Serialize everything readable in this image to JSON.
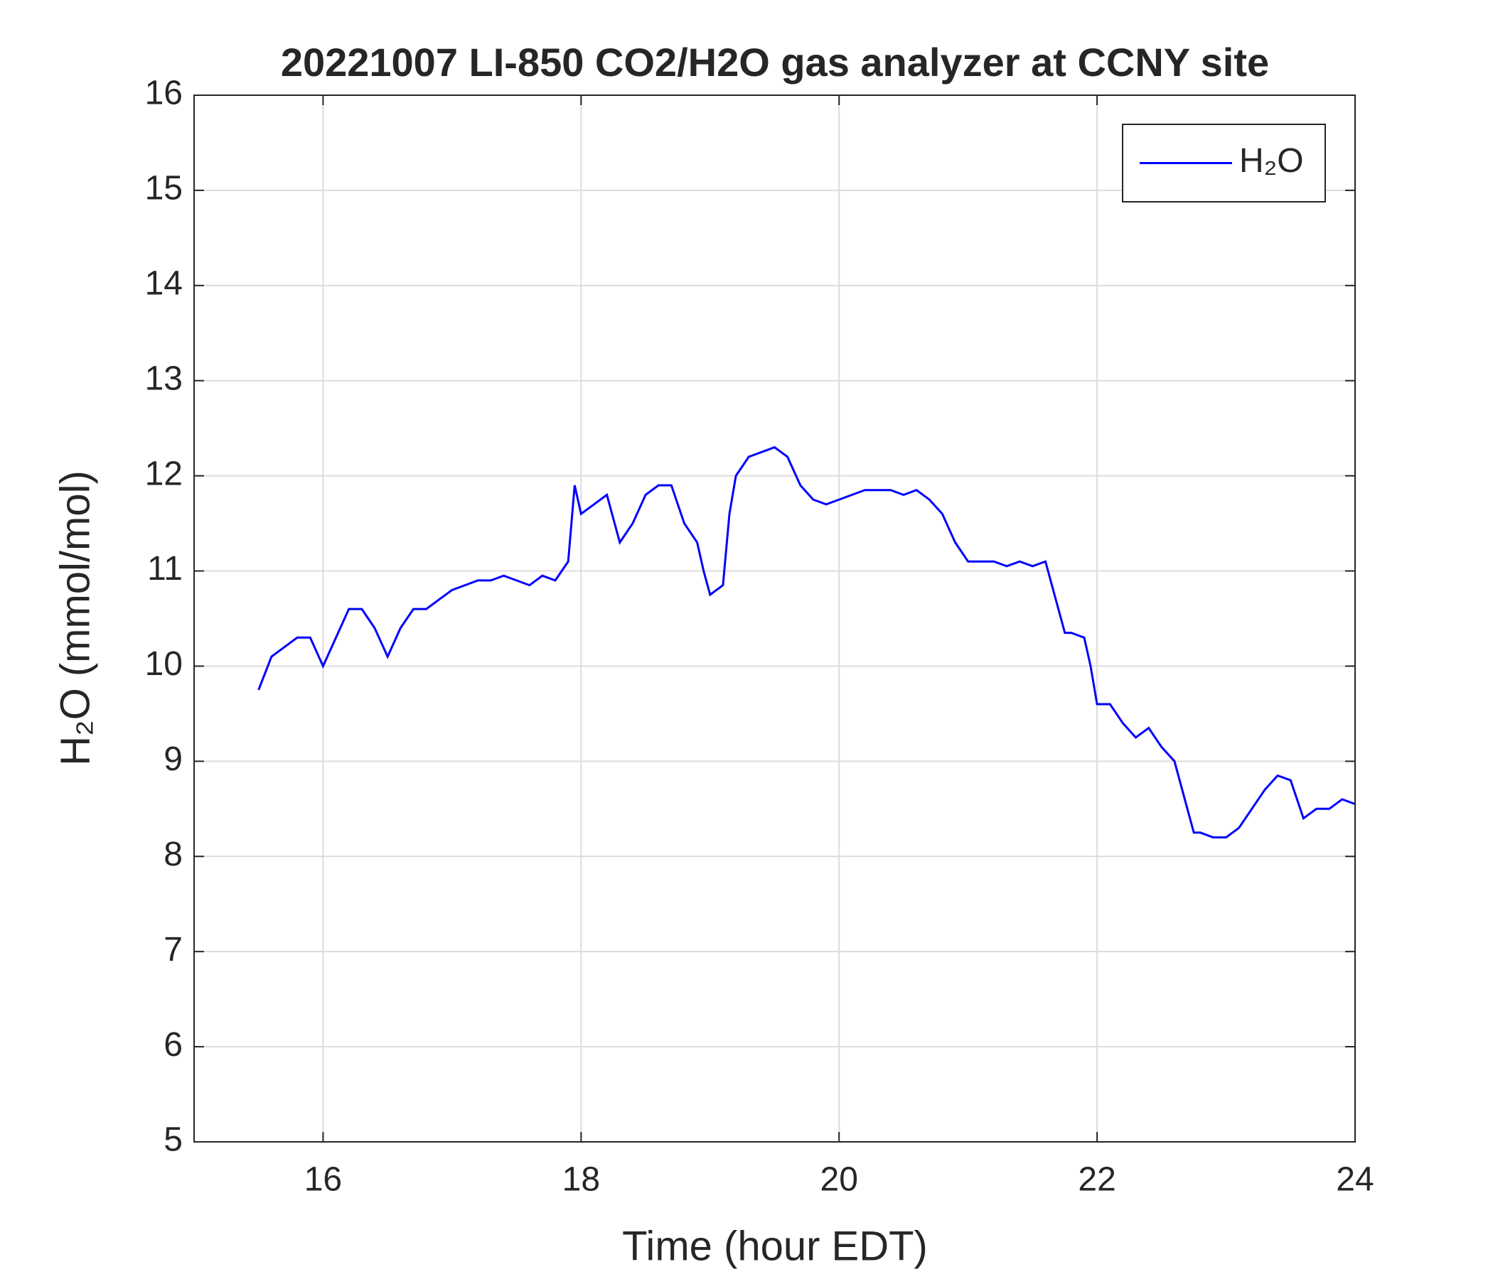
{
  "chart_data": {
    "type": "line",
    "title": "20221007 LI-850 CO2/H2O gas analyzer at CCNY site",
    "x_label": "Time (hour EDT)",
    "y_label": "H₂O (mmol/mol)",
    "x": [
      15.5,
      15.6,
      15.7,
      15.8,
      15.9,
      16.0,
      16.1,
      16.2,
      16.3,
      16.4,
      16.5,
      16.6,
      16.7,
      16.8,
      16.9,
      17.0,
      17.1,
      17.2,
      17.3,
      17.4,
      17.5,
      17.6,
      17.7,
      17.8,
      17.9,
      17.95,
      18.0,
      18.1,
      18.2,
      18.3,
      18.4,
      18.5,
      18.6,
      18.7,
      18.8,
      18.9,
      18.95,
      19.0,
      19.1,
      19.15,
      19.2,
      19.3,
      19.4,
      19.5,
      19.6,
      19.7,
      19.8,
      19.9,
      20.0,
      20.1,
      20.2,
      20.3,
      20.4,
      20.5,
      20.6,
      20.7,
      20.8,
      20.9,
      21.0,
      21.1,
      21.2,
      21.3,
      21.4,
      21.5,
      21.6,
      21.7,
      21.75,
      21.8,
      21.9,
      21.95,
      22.0,
      22.1,
      22.2,
      22.3,
      22.4,
      22.5,
      22.6,
      22.7,
      22.75,
      22.8,
      22.9,
      23.0,
      23.1,
      23.2,
      23.3,
      23.4,
      23.5,
      23.6,
      23.7,
      23.8,
      23.9,
      24.0
    ],
    "series": [
      {
        "name": "H₂O",
        "color": "#0000ff",
        "values": [
          9.75,
          10.1,
          10.2,
          10.3,
          10.3,
          10.0,
          10.3,
          10.6,
          10.6,
          10.4,
          10.1,
          10.4,
          10.6,
          10.6,
          10.7,
          10.8,
          10.85,
          10.9,
          10.9,
          10.95,
          10.9,
          10.85,
          10.95,
          10.9,
          11.1,
          11.9,
          11.6,
          11.7,
          11.8,
          11.3,
          11.5,
          11.8,
          11.9,
          11.9,
          11.5,
          11.3,
          11.0,
          10.75,
          10.85,
          11.6,
          12.0,
          12.2,
          12.25,
          12.3,
          12.2,
          11.9,
          11.75,
          11.7,
          11.75,
          11.8,
          11.85,
          11.85,
          11.85,
          11.8,
          11.85,
          11.75,
          11.6,
          11.3,
          11.1,
          11.1,
          11.1,
          11.05,
          11.1,
          11.05,
          11.1,
          10.6,
          10.35,
          10.35,
          10.3,
          10.0,
          9.6,
          9.6,
          9.4,
          9.25,
          9.35,
          9.15,
          9.0,
          8.5,
          8.25,
          8.25,
          8.2,
          8.2,
          8.3,
          8.5,
          8.7,
          8.85,
          8.8,
          8.4,
          8.5,
          8.5,
          8.6,
          8.55
        ]
      }
    ],
    "xlim": [
      15,
      24
    ],
    "xticks": [
      16,
      18,
      20,
      22,
      24
    ],
    "ylim": [
      5,
      16
    ],
    "yticks": [
      5,
      6,
      7,
      8,
      9,
      10,
      11,
      12,
      13,
      14,
      15,
      16
    ],
    "grid": true,
    "legend": "upper right"
  }
}
